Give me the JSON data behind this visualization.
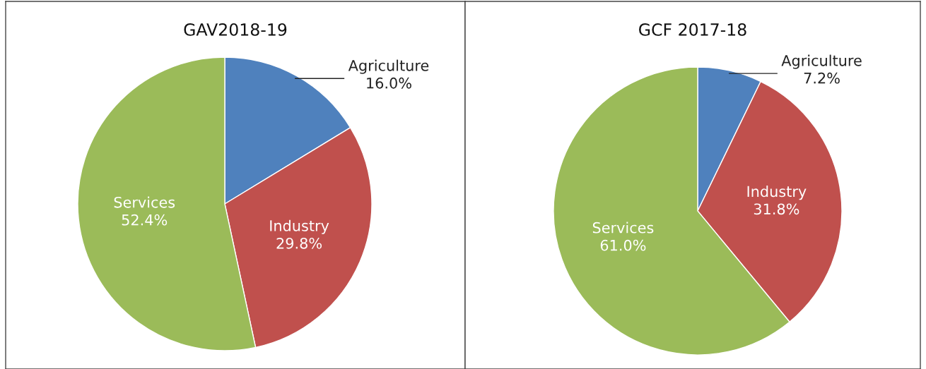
{
  "chart_data": [
    {
      "type": "pie",
      "title": "GAV2018-19",
      "categories": [
        "Agriculture",
        "Industry",
        "Services"
      ],
      "values": [
        16.0,
        29.8,
        52.4
      ],
      "value_labels": [
        "16.0%",
        "29.8%",
        "52.4%"
      ],
      "colors": [
        "#4f81bd",
        "#c0504d",
        "#9bbb59"
      ]
    },
    {
      "type": "pie",
      "title": "GCF 2017-18",
      "categories": [
        "Agriculture",
        "Industry",
        "Services"
      ],
      "values": [
        7.2,
        31.8,
        61.0
      ],
      "value_labels": [
        "7.2%",
        "31.8%",
        "61.0%"
      ],
      "colors": [
        "#4f81bd",
        "#c0504d",
        "#9bbb59"
      ]
    }
  ]
}
